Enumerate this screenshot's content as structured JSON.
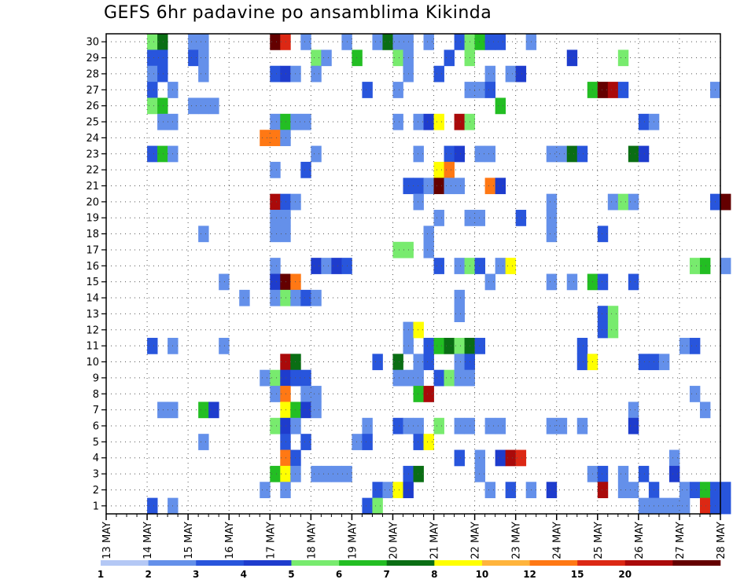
{
  "chart_data": {
    "type": "heatmap",
    "title": "GEFS 6hr padavine po ansamblima Kikinda",
    "x_tick_labels": [
      "13 MAY",
      "14 MAY",
      "15 MAY",
      "16 MAY",
      "17 MAY",
      "18 MAY",
      "19 MAY",
      "20 MAY",
      "21 MAY",
      "22 MAY",
      "23 MAY",
      "24 MAY",
      "25 MAY",
      "26 MAY",
      "27 MAY",
      "28 MAY"
    ],
    "y_tick_labels": [
      "1",
      "2",
      "3",
      "4",
      "5",
      "6",
      "7",
      "8",
      "9",
      "10",
      "11",
      "12",
      "13",
      "14",
      "15",
      "16",
      "17",
      "18",
      "19",
      "20",
      "21",
      "22",
      "23",
      "24",
      "25",
      "26",
      "27",
      "28",
      "29",
      "30"
    ],
    "x_range_days": [
      13,
      28
    ],
    "y_range": [
      0,
      30
    ],
    "grid": true,
    "colorbar": {
      "labels": [
        "1",
        "2",
        "3",
        "4",
        "5",
        "6",
        "7",
        "8",
        "10",
        "12",
        "15",
        "20"
      ],
      "colors": [
        "#b4c8f5",
        "#6490ea",
        "#2855dc",
        "#1e3ccd",
        "#78eb6e",
        "#23be23",
        "#0a6e14",
        "#ffff00",
        "#ffb43c",
        "#ff7814",
        "#dc2814",
        "#aa0a0a",
        "#640000"
      ]
    },
    "cells": [
      [
        4,
        30,
        3
      ],
      [
        5,
        30,
        5
      ],
      [
        16,
        30,
        4
      ],
      [
        17,
        30,
        3
      ],
      [
        18,
        30,
        2
      ],
      [
        24,
        30,
        5
      ],
      [
        25,
        30,
        2
      ],
      [
        27,
        30,
        3
      ],
      [
        28,
        30,
        10
      ],
      [
        29,
        30,
        2
      ],
      [
        30,
        30,
        2
      ],
      [
        31,
        30,
        12
      ],
      [
        32,
        30,
        13
      ],
      [
        33,
        30,
        5
      ],
      [
        36,
        30,
        3
      ],
      [
        42,
        30,
        5
      ],
      [
        43,
        30,
        3
      ],
      [
        55,
        30,
        2
      ],
      [
        58,
        30,
        12
      ],
      [
        4,
        29,
        5
      ],
      [
        5,
        29,
        7
      ],
      [
        8,
        29,
        2
      ],
      [
        9,
        29,
        2
      ],
      [
        16,
        29,
        13
      ],
      [
        17,
        29,
        11
      ],
      [
        19,
        29,
        2
      ],
      [
        23,
        29,
        2
      ],
      [
        26,
        29,
        2
      ],
      [
        27,
        29,
        7
      ],
      [
        28,
        29,
        2
      ],
      [
        29,
        29,
        2
      ],
      [
        31,
        29,
        2
      ],
      [
        34,
        29,
        3
      ],
      [
        35,
        29,
        5
      ],
      [
        36,
        29,
        6
      ],
      [
        37,
        29,
        3
      ],
      [
        38,
        29,
        3
      ],
      [
        41,
        29,
        2
      ],
      [
        4,
        28,
        3
      ],
      [
        5,
        28,
        3
      ],
      [
        8,
        28,
        3
      ],
      [
        9,
        28,
        2
      ],
      [
        20,
        28,
        5
      ],
      [
        21,
        28,
        2
      ],
      [
        24,
        28,
        6
      ],
      [
        28,
        28,
        5
      ],
      [
        29,
        28,
        2
      ],
      [
        33,
        28,
        3
      ],
      [
        35,
        28,
        5
      ],
      [
        45,
        28,
        4
      ],
      [
        50,
        28,
        5
      ],
      [
        4,
        27,
        2
      ],
      [
        5,
        27,
        3
      ],
      [
        9,
        27,
        2
      ],
      [
        16,
        27,
        3
      ],
      [
        17,
        27,
        4
      ],
      [
        18,
        27,
        2
      ],
      [
        20,
        27,
        2
      ],
      [
        29,
        27,
        2
      ],
      [
        32,
        27,
        3
      ],
      [
        37,
        27,
        2
      ],
      [
        39,
        27,
        2
      ],
      [
        40,
        27,
        4
      ],
      [
        4,
        26,
        3
      ],
      [
        6,
        26,
        2
      ],
      [
        25,
        26,
        3
      ],
      [
        28,
        26,
        2
      ],
      [
        35,
        26,
        2
      ],
      [
        36,
        26,
        2
      ],
      [
        37,
        26,
        3
      ],
      [
        47,
        26,
        6
      ],
      [
        48,
        26,
        13
      ],
      [
        49,
        26,
        12
      ],
      [
        50,
        26,
        3
      ],
      [
        59,
        26,
        2
      ],
      [
        4,
        25,
        5
      ],
      [
        5,
        25,
        6
      ],
      [
        8,
        25,
        2
      ],
      [
        9,
        25,
        2
      ],
      [
        10,
        25,
        2
      ],
      [
        38,
        25,
        6
      ],
      [
        5,
        24,
        2
      ],
      [
        6,
        24,
        2
      ],
      [
        16,
        24,
        2
      ],
      [
        17,
        24,
        6
      ],
      [
        18,
        24,
        2
      ],
      [
        19,
        24,
        2
      ],
      [
        28,
        24,
        2
      ],
      [
        30,
        24,
        2
      ],
      [
        31,
        24,
        4
      ],
      [
        32,
        24,
        8
      ],
      [
        34,
        24,
        12
      ],
      [
        35,
        24,
        5
      ],
      [
        52,
        24,
        3
      ],
      [
        53,
        24,
        2
      ],
      [
        15,
        23,
        10
      ],
      [
        16,
        23,
        10
      ],
      [
        17,
        23,
        2
      ],
      [
        4,
        22,
        3
      ],
      [
        5,
        22,
        6
      ],
      [
        6,
        22,
        2
      ],
      [
        20,
        22,
        2
      ],
      [
        30,
        22,
        2
      ],
      [
        33,
        22,
        3
      ],
      [
        34,
        22,
        4
      ],
      [
        36,
        22,
        2
      ],
      [
        37,
        22,
        2
      ],
      [
        43,
        22,
        2
      ],
      [
        44,
        22,
        2
      ],
      [
        45,
        22,
        7
      ],
      [
        46,
        22,
        3
      ],
      [
        51,
        22,
        7
      ],
      [
        52,
        22,
        4
      ],
      [
        16,
        21,
        2
      ],
      [
        19,
        21,
        3
      ],
      [
        32,
        21,
        8
      ],
      [
        33,
        21,
        10
      ],
      [
        29,
        20,
        3
      ],
      [
        30,
        20,
        3
      ],
      [
        31,
        20,
        2
      ],
      [
        32,
        20,
        13
      ],
      [
        33,
        20,
        2
      ],
      [
        34,
        20,
        2
      ],
      [
        37,
        20,
        10
      ],
      [
        38,
        20,
        4
      ],
      [
        16,
        19,
        12
      ],
      [
        17,
        19,
        3
      ],
      [
        18,
        19,
        2
      ],
      [
        30,
        19,
        2
      ],
      [
        43,
        19,
        2
      ],
      [
        49,
        19,
        2
      ],
      [
        50,
        19,
        5
      ],
      [
        51,
        19,
        2
      ],
      [
        59,
        19,
        3
      ],
      [
        60,
        19,
        13
      ],
      [
        16,
        18,
        2
      ],
      [
        17,
        18,
        2
      ],
      [
        32,
        18,
        2
      ],
      [
        35,
        18,
        2
      ],
      [
        36,
        18,
        2
      ],
      [
        40,
        18,
        3
      ],
      [
        43,
        18,
        2
      ],
      [
        9,
        17,
        2
      ],
      [
        16,
        17,
        2
      ],
      [
        17,
        17,
        2
      ],
      [
        31,
        17,
        2
      ],
      [
        43,
        17,
        2
      ],
      [
        48,
        17,
        3
      ],
      [
        28,
        16,
        5
      ],
      [
        29,
        16,
        5
      ],
      [
        31,
        16,
        2
      ],
      [
        16,
        15,
        2
      ],
      [
        20,
        15,
        4
      ],
      [
        21,
        15,
        2
      ],
      [
        22,
        15,
        4
      ],
      [
        23,
        15,
        3
      ],
      [
        32,
        15,
        3
      ],
      [
        34,
        15,
        2
      ],
      [
        35,
        15,
        5
      ],
      [
        36,
        15,
        3
      ],
      [
        38,
        15,
        2
      ],
      [
        39,
        15,
        8
      ],
      [
        57,
        15,
        5
      ],
      [
        58,
        15,
        6
      ],
      [
        60,
        15,
        2
      ],
      [
        11,
        14,
        2
      ],
      [
        16,
        14,
        4
      ],
      [
        17,
        14,
        13
      ],
      [
        18,
        14,
        10
      ],
      [
        37,
        14,
        2
      ],
      [
        43,
        14,
        2
      ],
      [
        45,
        14,
        2
      ],
      [
        47,
        14,
        6
      ],
      [
        48,
        14,
        3
      ],
      [
        51,
        14,
        3
      ],
      [
        13,
        13,
        2
      ],
      [
        16,
        13,
        2
      ],
      [
        17,
        13,
        5
      ],
      [
        18,
        13,
        2
      ],
      [
        19,
        13,
        3
      ],
      [
        20,
        13,
        2
      ],
      [
        34,
        13,
        2
      ],
      [
        34,
        12,
        2
      ],
      [
        48,
        12,
        3
      ],
      [
        49,
        12,
        5
      ],
      [
        29,
        11,
        2
      ],
      [
        30,
        11,
        8
      ],
      [
        48,
        11,
        3
      ],
      [
        49,
        11,
        5
      ],
      [
        4,
        10,
        3
      ],
      [
        6,
        10,
        2
      ],
      [
        11,
        10,
        2
      ],
      [
        29,
        10,
        2
      ],
      [
        31,
        10,
        3
      ],
      [
        32,
        10,
        6
      ],
      [
        33,
        10,
        7
      ],
      [
        34,
        10,
        5
      ],
      [
        35,
        10,
        7
      ],
      [
        36,
        10,
        3
      ],
      [
        46,
        10,
        3
      ],
      [
        56,
        10,
        2
      ],
      [
        57,
        10,
        3
      ],
      [
        17,
        9,
        12
      ],
      [
        18,
        9,
        7
      ],
      [
        26,
        9,
        3
      ],
      [
        28,
        9,
        7
      ],
      [
        30,
        9,
        2
      ],
      [
        31,
        9,
        3
      ],
      [
        34,
        9,
        2
      ],
      [
        35,
        9,
        3
      ],
      [
        46,
        9,
        3
      ],
      [
        47,
        9,
        8
      ],
      [
        52,
        9,
        3
      ],
      [
        53,
        9,
        3
      ],
      [
        54,
        9,
        2
      ],
      [
        15,
        8,
        2
      ],
      [
        16,
        8,
        5
      ],
      [
        17,
        8,
        4
      ],
      [
        18,
        8,
        3
      ],
      [
        19,
        8,
        3
      ],
      [
        28,
        8,
        2
      ],
      [
        29,
        8,
        2
      ],
      [
        30,
        8,
        2
      ],
      [
        32,
        8,
        3
      ],
      [
        33,
        8,
        5
      ],
      [
        34,
        8,
        2
      ],
      [
        35,
        8,
        2
      ],
      [
        16,
        7,
        2
      ],
      [
        17,
        7,
        10
      ],
      [
        19,
        7,
        2
      ],
      [
        20,
        7,
        2
      ],
      [
        30,
        7,
        6
      ],
      [
        31,
        7,
        12
      ],
      [
        57,
        7,
        2
      ],
      [
        5,
        6,
        2
      ],
      [
        6,
        6,
        2
      ],
      [
        9,
        6,
        6
      ],
      [
        10,
        6,
        4
      ],
      [
        17,
        6,
        8
      ],
      [
        18,
        6,
        6
      ],
      [
        19,
        6,
        4
      ],
      [
        20,
        6,
        2
      ],
      [
        51,
        6,
        2
      ],
      [
        58,
        6,
        2
      ],
      [
        16,
        5,
        5
      ],
      [
        17,
        5,
        4
      ],
      [
        18,
        5,
        2
      ],
      [
        25,
        5,
        2
      ],
      [
        28,
        5,
        3
      ],
      [
        29,
        5,
        2
      ],
      [
        30,
        5,
        2
      ],
      [
        32,
        5,
        5
      ],
      [
        34,
        5,
        2
      ],
      [
        35,
        5,
        2
      ],
      [
        37,
        5,
        2
      ],
      [
        38,
        5,
        2
      ],
      [
        43,
        5,
        2
      ],
      [
        44,
        5,
        2
      ],
      [
        46,
        5,
        2
      ],
      [
        51,
        5,
        4
      ],
      [
        9,
        4,
        2
      ],
      [
        17,
        4,
        3
      ],
      [
        19,
        4,
        3
      ],
      [
        24,
        4,
        2
      ],
      [
        25,
        4,
        3
      ],
      [
        30,
        4,
        3
      ],
      [
        31,
        4,
        8
      ],
      [
        17,
        3,
        10
      ],
      [
        18,
        3,
        3
      ],
      [
        34,
        3,
        3
      ],
      [
        36,
        3,
        2
      ],
      [
        38,
        3,
        4
      ],
      [
        39,
        3,
        12
      ],
      [
        40,
        3,
        11
      ],
      [
        55,
        3,
        2
      ],
      [
        16,
        2,
        6
      ],
      [
        17,
        2,
        8
      ],
      [
        18,
        2,
        2
      ],
      [
        20,
        2,
        2
      ],
      [
        21,
        2,
        2
      ],
      [
        22,
        2,
        2
      ],
      [
        23,
        2,
        2
      ],
      [
        29,
        2,
        3
      ],
      [
        30,
        2,
        7
      ],
      [
        36,
        2,
        2
      ],
      [
        47,
        2,
        2
      ],
      [
        48,
        2,
        3
      ],
      [
        50,
        2,
        2
      ],
      [
        52,
        2,
        3
      ],
      [
        55,
        2,
        4
      ],
      [
        15,
        1,
        2
      ],
      [
        17,
        1,
        2
      ],
      [
        26,
        1,
        3
      ],
      [
        27,
        1,
        2
      ],
      [
        28,
        1,
        8
      ],
      [
        29,
        1,
        4
      ],
      [
        37,
        1,
        2
      ],
      [
        39,
        1,
        3
      ],
      [
        41,
        1,
        2
      ],
      [
        43,
        1,
        4
      ],
      [
        48,
        1,
        12
      ],
      [
        50,
        1,
        2
      ],
      [
        51,
        1,
        2
      ],
      [
        53,
        1,
        3
      ],
      [
        56,
        1,
        2
      ],
      [
        57,
        1,
        3
      ],
      [
        58,
        1,
        6
      ],
      [
        59,
        1,
        3
      ],
      [
        60,
        1,
        3
      ],
      [
        4,
        0,
        3
      ],
      [
        6,
        0,
        2
      ],
      [
        25,
        0,
        3
      ],
      [
        26,
        0,
        5
      ],
      [
        52,
        0,
        2
      ],
      [
        53,
        0,
        2
      ],
      [
        54,
        0,
        2
      ],
      [
        55,
        0,
        2
      ],
      [
        56,
        0,
        2
      ],
      [
        58,
        0,
        11
      ],
      [
        59,
        0,
        3
      ],
      [
        60,
        0,
        3
      ],
      [
        9,
        -1,
        2
      ],
      [
        10,
        -1,
        3
      ],
      [
        12,
        -1,
        4
      ],
      [
        13,
        -1,
        4
      ],
      [
        16,
        -1,
        3
      ],
      [
        17,
        -1,
        2
      ],
      [
        28,
        -1,
        6
      ],
      [
        29,
        -1,
        6
      ],
      [
        33,
        -1,
        2
      ],
      [
        34,
        -1,
        2
      ],
      [
        37,
        -1,
        3
      ],
      [
        38,
        -1,
        3
      ],
      [
        39,
        -1,
        2
      ],
      [
        40,
        -1,
        2
      ],
      [
        47,
        -1,
        3
      ],
      [
        50,
        -1,
        3
      ],
      [
        51,
        -1,
        3
      ]
    ]
  }
}
